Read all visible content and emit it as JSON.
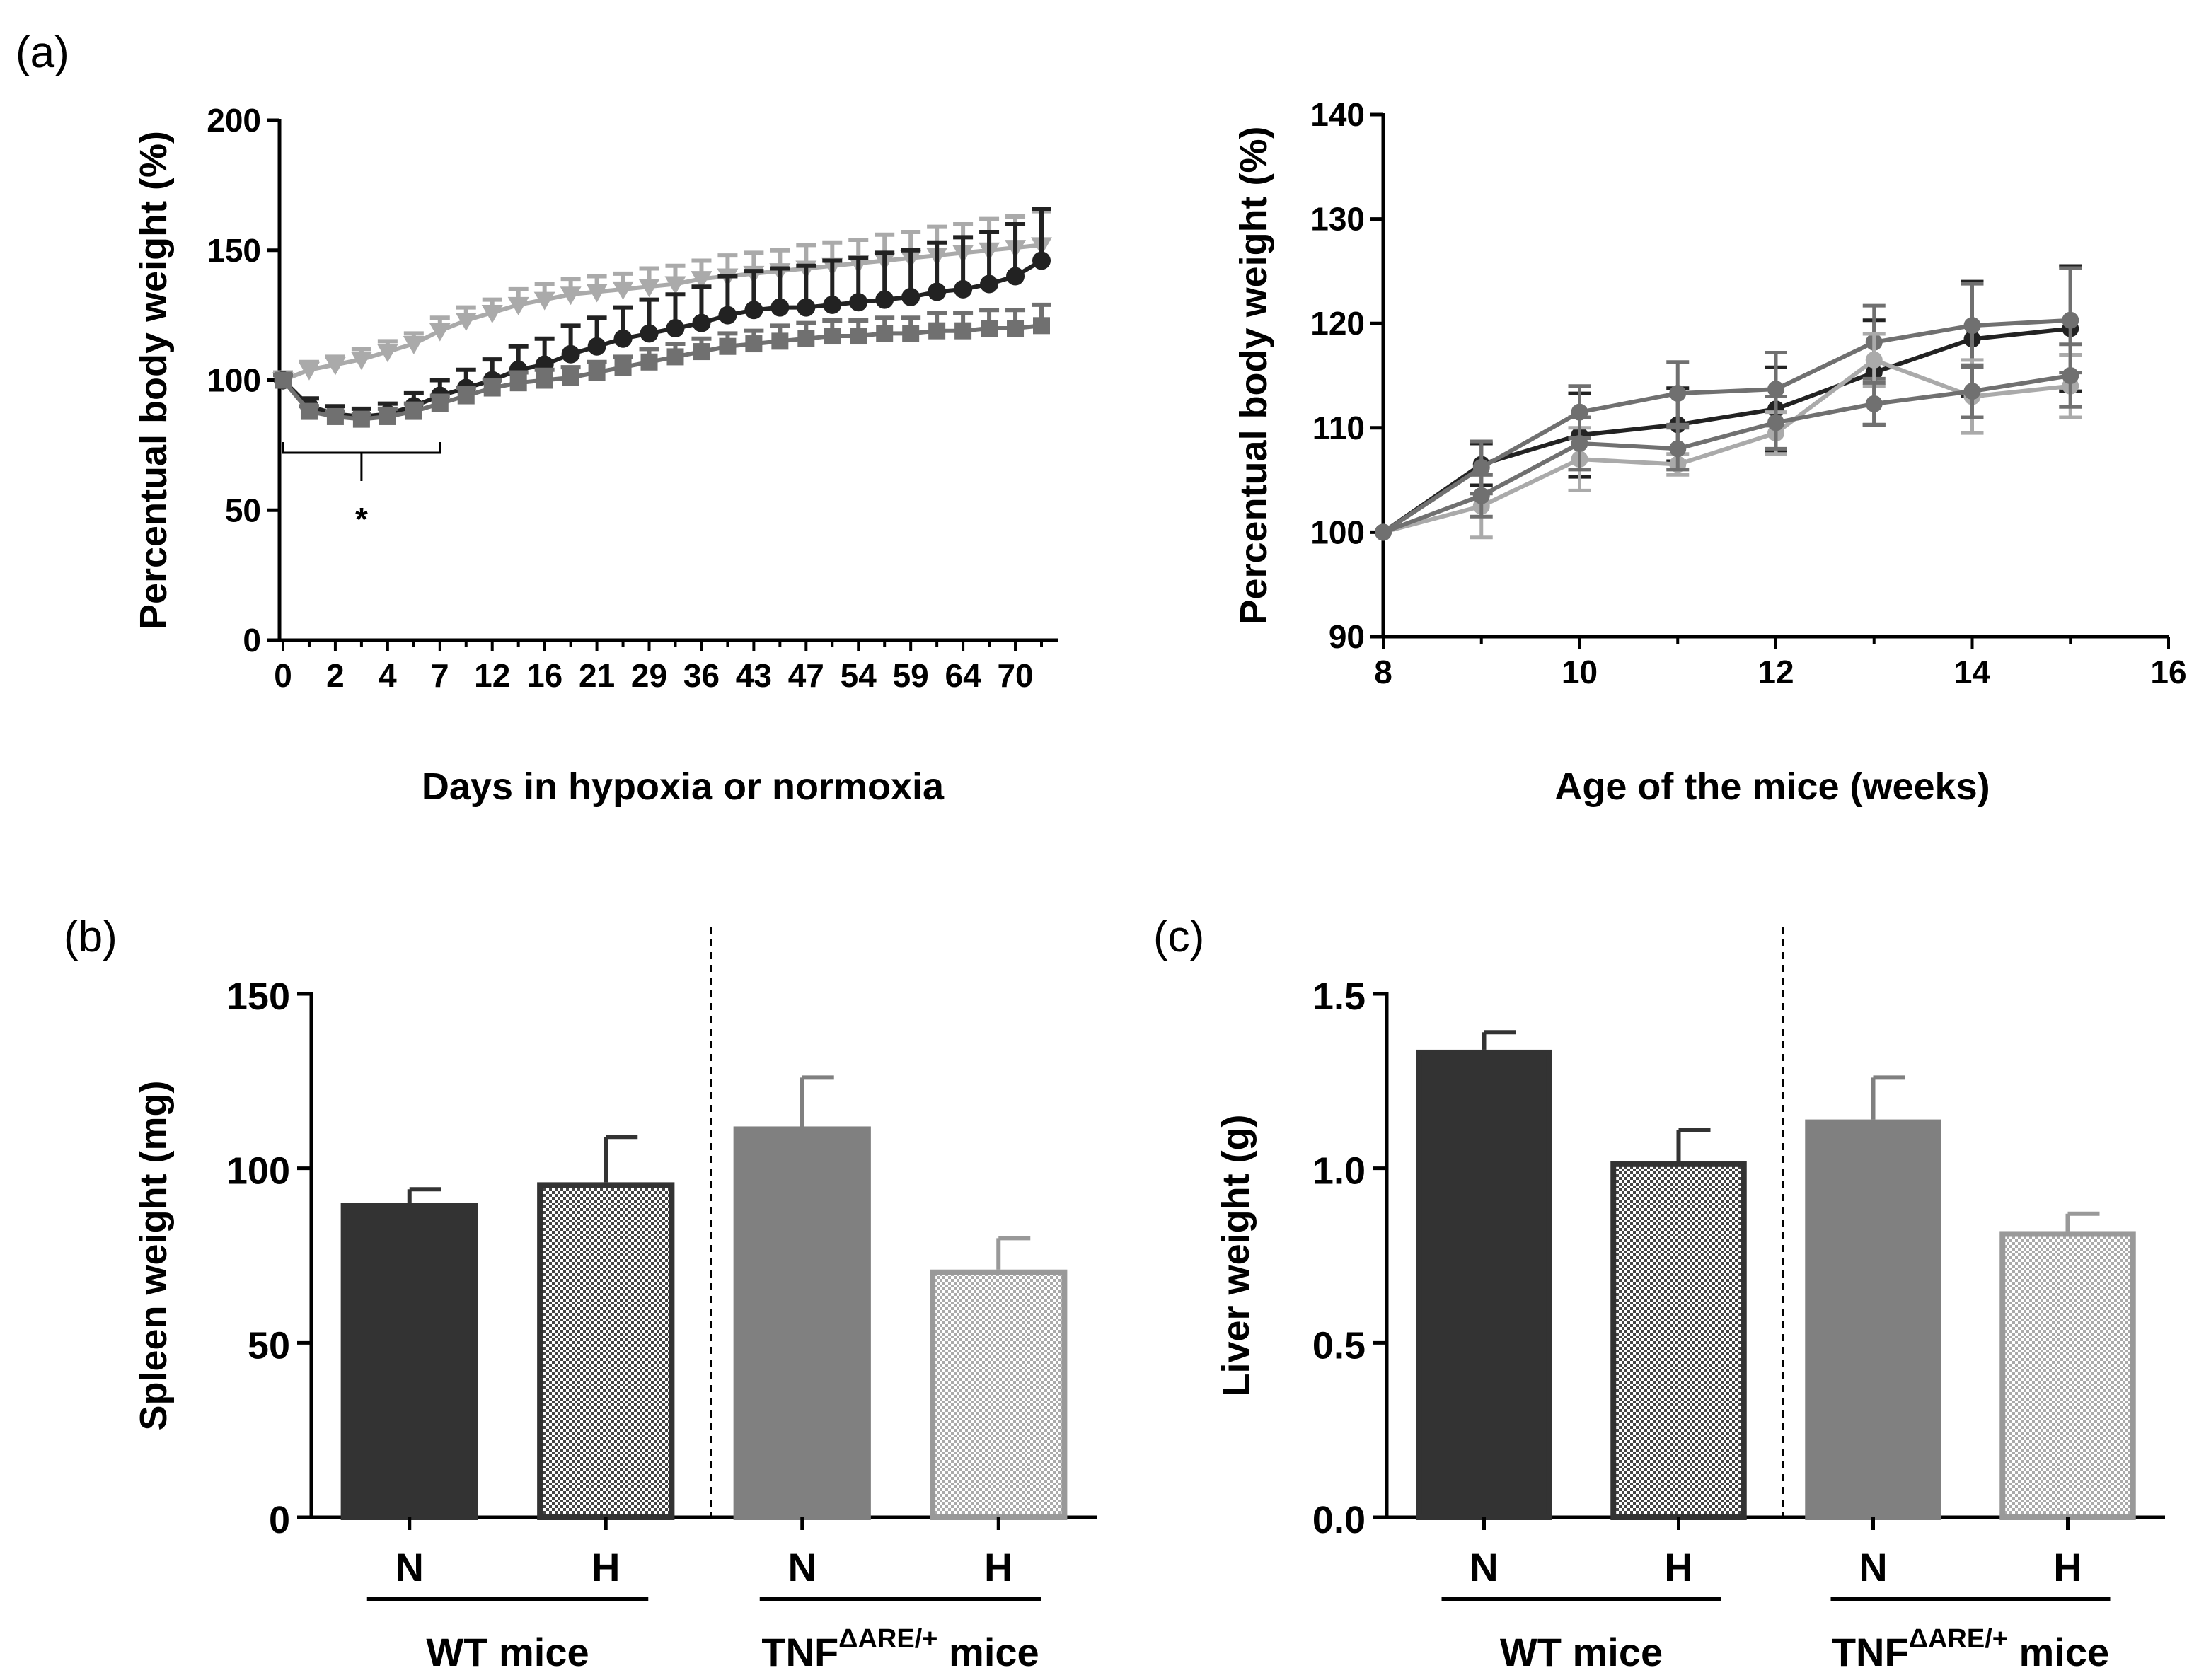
{
  "colors": {
    "wt_normoxia": "#333333",
    "wt_hypoxia_edge": "#333333",
    "tnf_normoxia": "#808080",
    "tnf_hypoxia_edge": "#999999",
    "series_dark": "#222222",
    "series_mid": "#707070",
    "series_light": "#aaaaaa",
    "axis": "#000000"
  },
  "chart_data": [
    {
      "id": "a1",
      "panel_label": "(a)",
      "type": "line",
      "xlabel": "Days in hypoxia or normoxia",
      "ylabel": "Percentual body weight (%)",
      "ylim": [
        0,
        200
      ],
      "yticks": [
        "0",
        "50",
        "100",
        "150",
        "200"
      ],
      "xtick_labels": [
        "0",
        "2",
        "4",
        "7",
        "12",
        "16",
        "21",
        "29",
        "36",
        "43",
        "47",
        "54",
        "59",
        "64",
        "70"
      ],
      "n_points": 30,
      "annotation": "*",
      "annotation_range_index": [
        0,
        6
      ],
      "series": [
        {
          "name": "light-triangle",
          "marker": "triangle-down",
          "color_key": "series_light",
          "values": [
            100,
            104,
            106,
            108,
            111,
            114,
            119,
            123,
            126,
            129,
            131,
            133,
            134,
            135,
            136,
            137,
            139,
            140,
            141,
            142,
            143,
            144,
            145,
            146,
            147,
            148,
            149,
            150,
            151,
            152
          ],
          "err": [
            3,
            3,
            3,
            4,
            4,
            4,
            5,
            5,
            5,
            6,
            6,
            6,
            6,
            6,
            7,
            7,
            7,
            8,
            8,
            8,
            9,
            9,
            9,
            10,
            10,
            11,
            11,
            12,
            12,
            13
          ]
        },
        {
          "name": "dark-circle",
          "marker": "circle",
          "color_key": "series_dark",
          "values": [
            100,
            90,
            87,
            86,
            87,
            90,
            94,
            97,
            100,
            104,
            106,
            110,
            113,
            116,
            118,
            120,
            122,
            125,
            127,
            128,
            128,
            129,
            130,
            131,
            132,
            134,
            135,
            137,
            140,
            146
          ],
          "err": [
            2,
            3,
            3,
            3,
            4,
            5,
            6,
            7,
            8,
            9,
            10,
            11,
            11,
            12,
            13,
            13,
            14,
            15,
            15,
            15,
            16,
            17,
            17,
            18,
            18,
            19,
            20,
            20,
            20,
            20
          ]
        },
        {
          "name": "gray-square",
          "marker": "square",
          "color_key": "series_mid",
          "values": [
            100,
            88,
            86,
            85,
            86,
            88,
            91,
            94,
            97,
            99,
            100,
            101,
            103,
            105,
            107,
            109,
            111,
            113,
            114,
            115,
            116,
            117,
            117,
            118,
            118,
            119,
            119,
            120,
            120,
            121
          ],
          "err": [
            2,
            2,
            2,
            2,
            3,
            3,
            3,
            3,
            3,
            4,
            4,
            4,
            4,
            4,
            5,
            5,
            5,
            5,
            5,
            6,
            6,
            6,
            6,
            6,
            6,
            7,
            7,
            7,
            7,
            8
          ]
        }
      ]
    },
    {
      "id": "a2",
      "type": "line",
      "xlabel": "Age of the mice (weeks)",
      "ylabel": "Percentual body weight (%)",
      "xlim": [
        8,
        16
      ],
      "ylim": [
        90,
        140
      ],
      "xticks": [
        "8",
        "10",
        "12",
        "14",
        "16"
      ],
      "yticks": [
        "90",
        "100",
        "110",
        "120",
        "130",
        "140"
      ],
      "x": [
        8,
        9,
        10,
        11,
        12,
        13,
        14,
        15
      ],
      "series": [
        {
          "name": "series-1",
          "color_key": "series_dark",
          "values": [
            100,
            106.5,
            109.3,
            110.3,
            111.8,
            115.3,
            118.5,
            119.5
          ],
          "err": [
            0,
            2,
            4,
            3.5,
            4,
            5,
            5.5,
            6
          ]
        },
        {
          "name": "series-2",
          "color_key": "series_mid",
          "values": [
            100,
            106.2,
            111.5,
            113.3,
            113.7,
            118.2,
            119.8,
            120.3
          ],
          "err": [
            0,
            2.5,
            2.5,
            3,
            3.5,
            3.5,
            4,
            5
          ]
        },
        {
          "name": "series-3",
          "color_key": "series_light",
          "values": [
            100,
            102.5,
            107,
            106.5,
            109.5,
            116.5,
            113,
            114
          ],
          "err": [
            0,
            3,
            3,
            1,
            2,
            2.5,
            3.5,
            3
          ]
        },
        {
          "name": "series-4",
          "color_key": "series_mid",
          "values": [
            100,
            103.5,
            108.5,
            108,
            110.5,
            112.3,
            113.5,
            115
          ],
          "err": [
            0,
            2,
            2.5,
            2,
            2.5,
            2,
            2.5,
            3
          ]
        }
      ]
    },
    {
      "id": "b",
      "panel_label": "(b)",
      "type": "bar",
      "ylabel": "Spleen weight (mg)",
      "ylim": [
        0,
        150
      ],
      "yticks": [
        "0",
        "50",
        "100",
        "150"
      ],
      "categories": [
        "N",
        "H",
        "N",
        "H"
      ],
      "values": [
        90,
        96,
        112,
        71
      ],
      "err": [
        4,
        13,
        14,
        9
      ],
      "fills": [
        "solid-dark",
        "check-dark",
        "solid-gray",
        "check-light"
      ],
      "groups": [
        {
          "label": "WT mice"
        },
        {
          "label_prefix": "TNF",
          "label_sup": "ΔARE/+",
          "label_suffix": " mice"
        }
      ]
    },
    {
      "id": "c",
      "panel_label": "(c)",
      "type": "bar",
      "ylabel": "Liver weight (g)",
      "ylim": [
        0,
        1.5
      ],
      "yticks": [
        "0.0",
        "0.5",
        "1.0",
        "1.5"
      ],
      "categories": [
        "N",
        "H",
        "N",
        "H"
      ],
      "values": [
        1.34,
        1.02,
        1.14,
        0.82
      ],
      "err": [
        0.05,
        0.09,
        0.12,
        0.05
      ],
      "fills": [
        "solid-dark",
        "check-dark",
        "solid-gray",
        "check-light"
      ],
      "groups": [
        {
          "label": "WT mice"
        },
        {
          "label_prefix": "TNF",
          "label_sup": "ΔARE/+",
          "label_suffix": " mice"
        }
      ]
    }
  ]
}
